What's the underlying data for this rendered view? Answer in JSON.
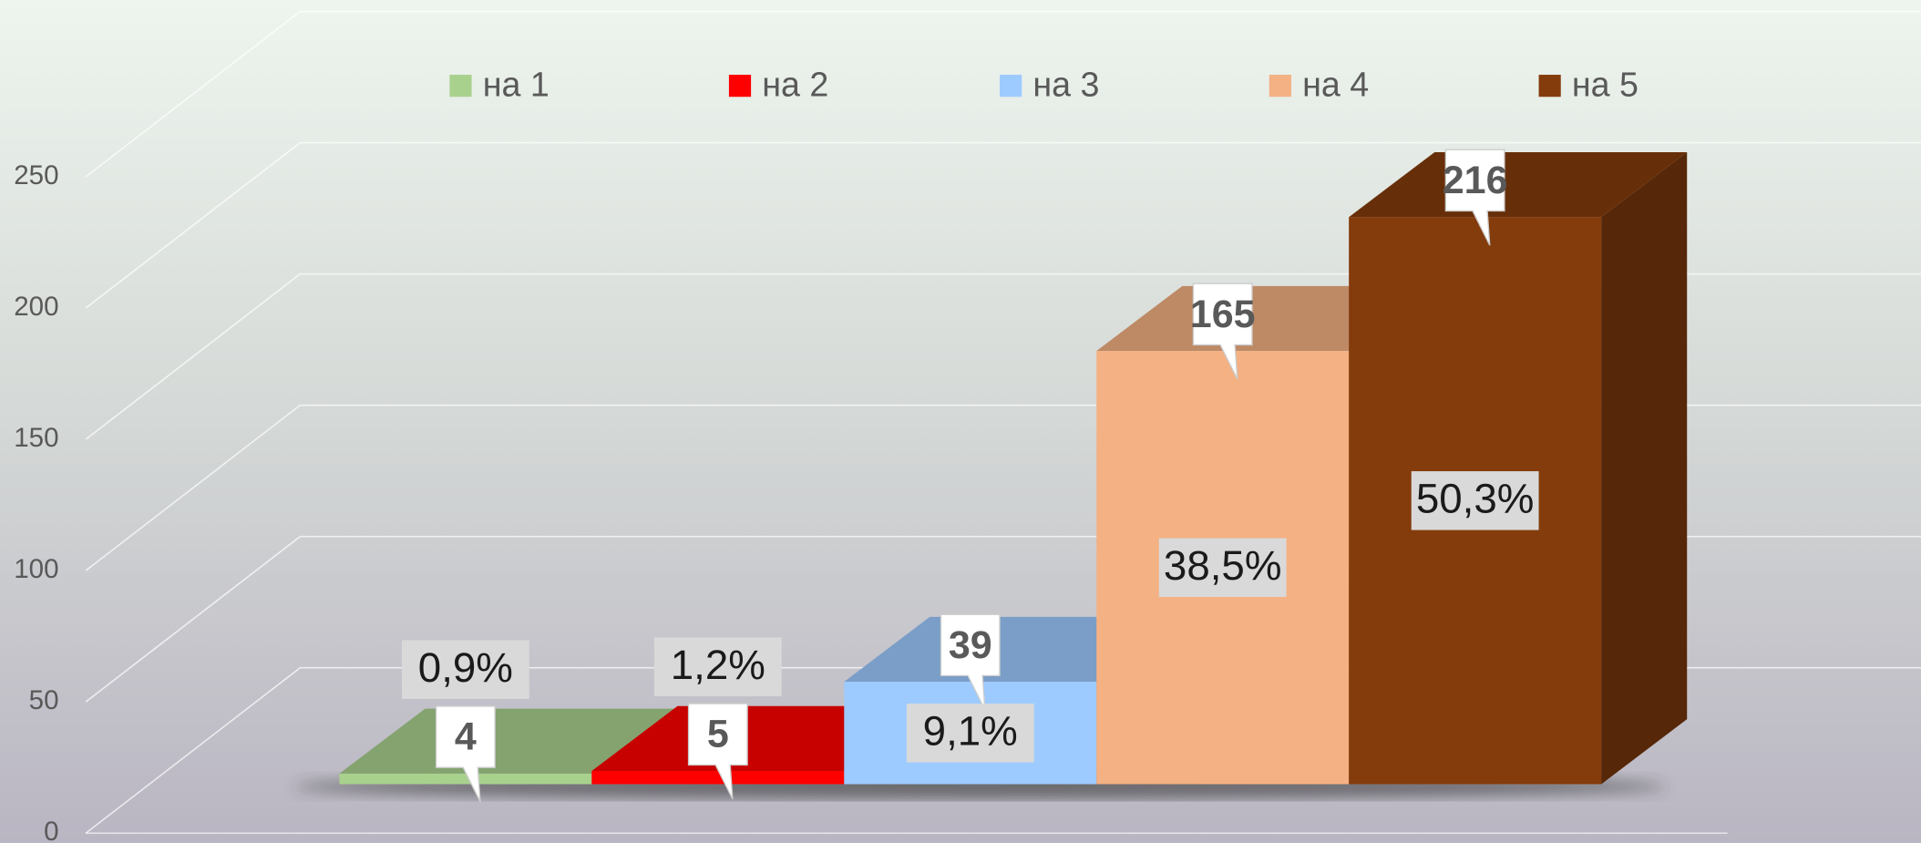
{
  "chart_data": {
    "type": "bar3d",
    "series": [
      {
        "name": "на 1",
        "color": "#a9d18e",
        "values": [
          4
        ],
        "share_label": "0,9%"
      },
      {
        "name": "на 2",
        "color": "#ff0000",
        "values": [
          5
        ],
        "share_label": "1,2%"
      },
      {
        "name": "на 3",
        "color": "#9dcbff",
        "values": [
          39
        ],
        "share_label": "9,1%"
      },
      {
        "name": "на 4",
        "color": "#f4b183",
        "values": [
          165
        ],
        "share_label": "38,5%"
      },
      {
        "name": "на 5",
        "color": "#843c0c",
        "values": [
          216
        ],
        "share_label": "50,3%"
      }
    ],
    "ylim": [
      0,
      250
    ],
    "yticks": [
      0,
      50,
      100,
      150,
      200,
      250
    ],
    "grid": true,
    "legend": "top"
  }
}
